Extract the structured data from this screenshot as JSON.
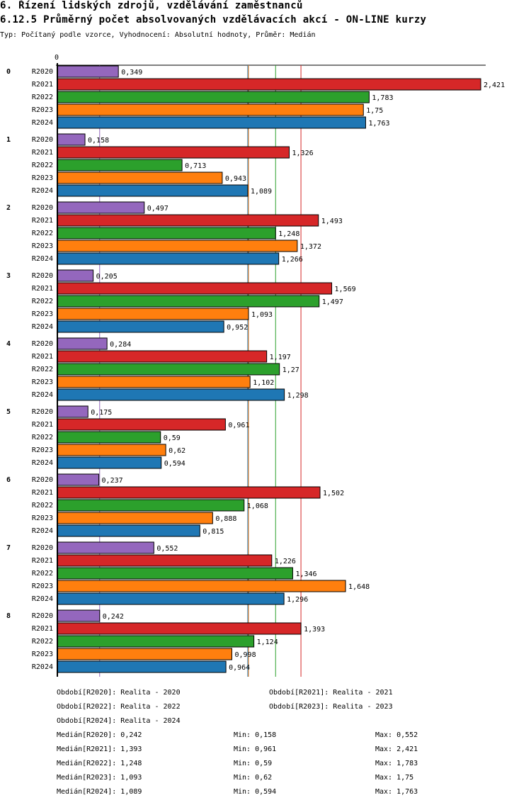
{
  "title": "6. Řízení lidských zdrojů, vzdělávání zaměstnanců",
  "subtitle": "6.12.5 Průměrný počet absolvovaných vzdělávacích akcí - ON-LINE kurzy",
  "info": "Typ: Počítaný podle vzorce, Vyhodnocení: Absolutní hodnoty, Průměr: Medián",
  "chart_data": {
    "type": "bar",
    "orientation": "horizontal",
    "title": "6.12.5 Průměrný počet absolvovaných vzdělávacích akcí - ON-LINE kurzy",
    "x_tick_labels": [
      "0"
    ],
    "xlim": [
      0,
      2.421
    ],
    "categories": [
      "0",
      "1",
      "2",
      "3",
      "4",
      "5",
      "6",
      "7",
      "8"
    ],
    "series": [
      {
        "name": "R2020",
        "color": "#9467bd",
        "values": [
          0.349,
          0.158,
          0.497,
          0.205,
          0.284,
          0.175,
          0.237,
          0.552,
          0.242
        ],
        "labels": [
          "0,349",
          "0,158",
          "0,497",
          "0,205",
          "0,284",
          "0,175",
          "0,237",
          "0,552",
          "0,242"
        ],
        "median": 0.242
      },
      {
        "name": "R2021",
        "color": "#d62728",
        "values": [
          2.421,
          1.326,
          1.493,
          1.569,
          1.197,
          0.961,
          1.502,
          1.226,
          1.393
        ],
        "labels": [
          "2,421",
          "1,326",
          "1,493",
          "1,569",
          "1,197",
          "0,961",
          "1,502",
          "1,226",
          "1,393"
        ],
        "median": 1.393
      },
      {
        "name": "R2022",
        "color": "#2ca02c",
        "values": [
          1.783,
          0.713,
          1.248,
          1.497,
          1.27,
          0.59,
          1.068,
          1.346,
          1.124
        ],
        "labels": [
          "1,783",
          "0,713",
          "1,248",
          "1,497",
          "1,27",
          "0,59",
          "1,068",
          "1,346",
          "1,124"
        ],
        "median": 1.248
      },
      {
        "name": "R2023",
        "color": "#ff7f0e",
        "values": [
          1.75,
          0.943,
          1.372,
          1.093,
          1.102,
          0.62,
          0.888,
          1.648,
          0.998
        ],
        "labels": [
          "1,75",
          "0,943",
          "1,372",
          "1,093",
          "1,102",
          "0,62",
          "0,888",
          "1,648",
          "0,998"
        ],
        "median": 1.093
      },
      {
        "name": "R2024",
        "color": "#1f77b4",
        "values": [
          1.763,
          1.089,
          1.266,
          0.952,
          1.298,
          0.594,
          0.815,
          1.296,
          0.964
        ],
        "labels": [
          "1,763",
          "1,089",
          "1,266",
          "0,952",
          "1,298",
          "0,594",
          "0,815",
          "1,296",
          "0,964"
        ],
        "median": 1.089
      }
    ]
  },
  "legend": [
    "Období[R2020]: Realita - 2020",
    "Období[R2021]: Realita - 2021",
    "Období[R2022]: Realita - 2022",
    "Období[R2023]: Realita - 2023",
    "Období[R2024]: Realita - 2024"
  ],
  "stats": [
    {
      "median": "Medián[R2020]: 0,242",
      "min": "Min: 0,158",
      "max": "Max: 0,552"
    },
    {
      "median": "Medián[R2021]: 1,393",
      "min": "Min: 0,961",
      "max": "Max: 2,421"
    },
    {
      "median": "Medián[R2022]: 1,248",
      "min": "Min: 0,59",
      "max": "Max: 1,783"
    },
    {
      "median": "Medián[R2023]: 1,093",
      "min": "Min: 0,62",
      "max": "Max: 1,75"
    },
    {
      "median": "Medián[R2024]: 1,089",
      "min": "Min: 0,594",
      "max": "Max: 1,763"
    }
  ]
}
